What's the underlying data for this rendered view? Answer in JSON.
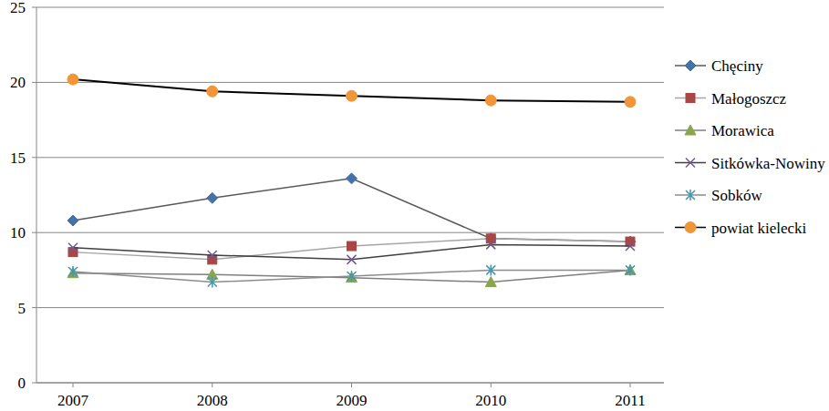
{
  "chart_data": {
    "type": "line",
    "categories": [
      "2007",
      "2008",
      "2009",
      "2010",
      "2011"
    ],
    "series": [
      {
        "name": "Chęciny",
        "color": "#4572a7",
        "marker": "diamond",
        "values": [
          10.8,
          12.3,
          13.6,
          9.6,
          9.4
        ]
      },
      {
        "name": "Małogoszcz",
        "color": "#aa4643",
        "marker": "square",
        "values": [
          8.7,
          8.2,
          9.1,
          9.6,
          9.4
        ]
      },
      {
        "name": "Morawica",
        "color": "#89a54e",
        "marker": "triangle",
        "values": [
          7.3,
          7.2,
          7.0,
          6.7,
          7.5
        ]
      },
      {
        "name": "Sitkówka-Nowiny",
        "color": "#71588f",
        "marker": "x",
        "values": [
          9.0,
          8.5,
          8.2,
          9.2,
          9.1
        ]
      },
      {
        "name": "Sobków",
        "color": "#4198af",
        "marker": "star",
        "values": [
          7.4,
          6.7,
          7.1,
          7.5,
          7.5
        ]
      },
      {
        "name": "powiat kielecki",
        "color": "#f09538",
        "marker": "circle",
        "values": [
          20.2,
          19.4,
          19.1,
          18.8,
          18.7
        ]
      }
    ],
    "ylim": [
      0,
      25
    ],
    "yticks": [
      0,
      5,
      10,
      15,
      20,
      25
    ],
    "grid": true,
    "legend": "right"
  }
}
